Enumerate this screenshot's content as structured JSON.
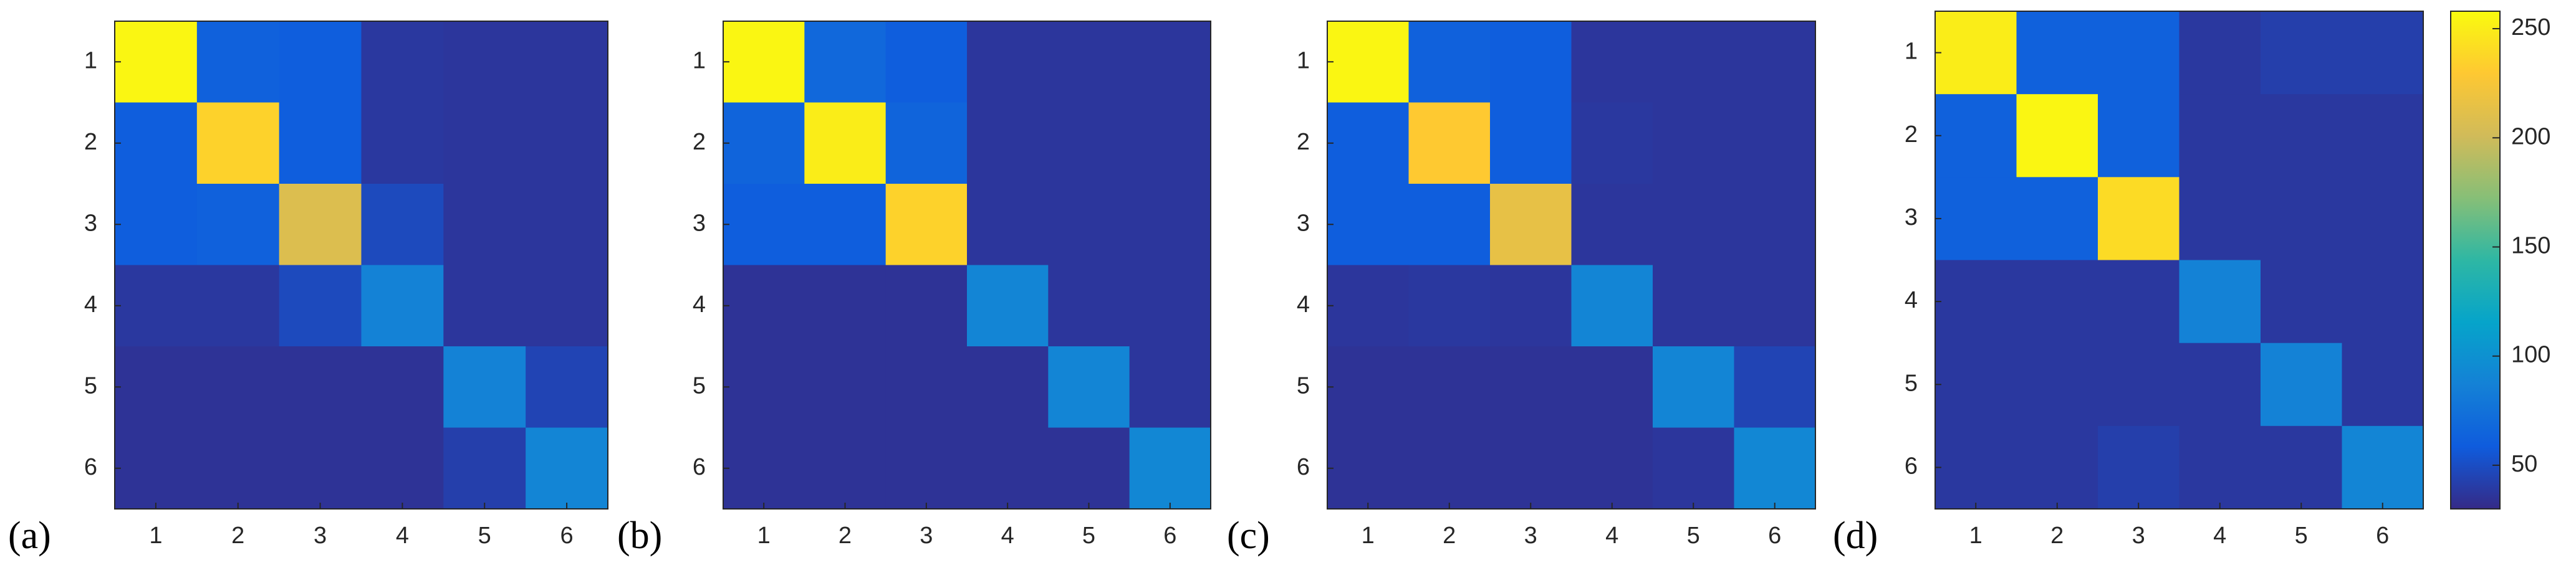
{
  "chart_data": [
    {
      "type": "heatmap",
      "label": "(a)",
      "colormap": "parula",
      "x": [
        1,
        2,
        3,
        4,
        5,
        6
      ],
      "y": [
        1,
        2,
        3,
        4,
        5,
        6
      ],
      "values": [
        [
          255,
          62,
          60,
          38,
          37,
          37
        ],
        [
          60,
          235,
          60,
          38,
          37,
          37
        ],
        [
          60,
          62,
          208,
          48,
          37,
          37
        ],
        [
          38,
          38,
          48,
          88,
          37,
          37
        ],
        [
          35,
          35,
          35,
          35,
          88,
          45
        ],
        [
          35,
          35,
          35,
          35,
          42,
          90
        ]
      ]
    },
    {
      "type": "heatmap",
      "label": "(b)",
      "colormap": "parula",
      "x": [
        1,
        2,
        3,
        4,
        5,
        6
      ],
      "y": [
        1,
        2,
        3,
        4,
        5,
        6
      ],
      "values": [
        [
          255,
          68,
          60,
          37,
          37,
          37
        ],
        [
          65,
          250,
          65,
          37,
          37,
          37
        ],
        [
          60,
          60,
          235,
          37,
          37,
          37
        ],
        [
          35,
          35,
          35,
          90,
          37,
          37
        ],
        [
          35,
          35,
          35,
          35,
          90,
          37
        ],
        [
          35,
          35,
          35,
          35,
          35,
          92
        ]
      ]
    },
    {
      "type": "heatmap",
      "label": "(c)",
      "colormap": "parula",
      "x": [
        1,
        2,
        3,
        4,
        5,
        6
      ],
      "y": [
        1,
        2,
        3,
        4,
        5,
        6
      ],
      "values": [
        [
          255,
          62,
          60,
          37,
          37,
          37
        ],
        [
          60,
          230,
          60,
          38,
          37,
          37
        ],
        [
          60,
          60,
          215,
          37,
          37,
          37
        ],
        [
          37,
          38,
          37,
          90,
          37,
          37
        ],
        [
          35,
          35,
          35,
          35,
          90,
          45
        ],
        [
          35,
          35,
          35,
          35,
          37,
          92
        ]
      ]
    },
    {
      "type": "heatmap",
      "label": "(d)",
      "colormap": "parula",
      "x": [
        1,
        2,
        3,
        4,
        5,
        6
      ],
      "y": [
        1,
        2,
        3,
        4,
        5,
        6
      ],
      "values": [
        [
          250,
          62,
          62,
          38,
          42,
          42
        ],
        [
          62,
          255,
          62,
          38,
          38,
          38
        ],
        [
          62,
          62,
          240,
          38,
          38,
          38
        ],
        [
          38,
          38,
          38,
          88,
          38,
          38
        ],
        [
          38,
          38,
          38,
          38,
          88,
          38
        ],
        [
          38,
          38,
          42,
          38,
          38,
          90
        ]
      ],
      "colorbar": {
        "lim": [
          30,
          258
        ],
        "ticks": [
          50,
          100,
          150,
          200,
          250
        ]
      }
    }
  ]
}
